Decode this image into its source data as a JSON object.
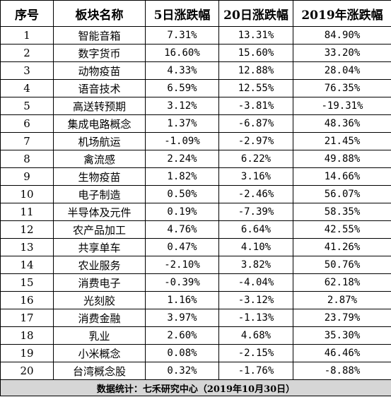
{
  "table": {
    "headers": [
      "序号",
      "板块名称",
      "5日涨跌幅",
      "20日涨跌幅",
      "2019年涨跌幅"
    ],
    "rows": [
      [
        "1",
        "智能音箱",
        "7.31%",
        "13.31%",
        "84.90%"
      ],
      [
        "2",
        "数字货币",
        "16.60%",
        "15.60%",
        "33.20%"
      ],
      [
        "3",
        "动物疫苗",
        "4.33%",
        "12.88%",
        "28.04%"
      ],
      [
        "4",
        "语音技术",
        "6.59%",
        "12.55%",
        "76.35%"
      ],
      [
        "5",
        "高送转预期",
        "3.12%",
        "-3.81%",
        "-19.31%"
      ],
      [
        "6",
        "集成电路概念",
        "1.37%",
        "-6.87%",
        "48.36%"
      ],
      [
        "7",
        "机场航运",
        "-1.09%",
        "-2.97%",
        "21.45%"
      ],
      [
        "8",
        "禽流感",
        "2.24%",
        "6.22%",
        "49.88%"
      ],
      [
        "9",
        "生物疫苗",
        "1.82%",
        "3.16%",
        "14.66%"
      ],
      [
        "10",
        "电子制造",
        "0.50%",
        "-2.46%",
        "56.07%"
      ],
      [
        "11",
        "半导体及元件",
        "0.19%",
        "-7.39%",
        "58.35%"
      ],
      [
        "12",
        "农产品加工",
        "4.76%",
        "6.64%",
        "42.55%"
      ],
      [
        "13",
        "共享单车",
        "0.47%",
        "4.10%",
        "41.26%"
      ],
      [
        "14",
        "农业服务",
        "-2.10%",
        "3.82%",
        "50.76%"
      ],
      [
        "15",
        "消费电子",
        "-0.39%",
        "-4.04%",
        "62.18%"
      ],
      [
        "16",
        "光刻胶",
        "1.16%",
        "-3.12%",
        "2.87%"
      ],
      [
        "17",
        "消费金融",
        "3.97%",
        "-1.13%",
        "23.79%"
      ],
      [
        "18",
        "乳业",
        "2.60%",
        "4.68%",
        "35.30%"
      ],
      [
        "19",
        "小米概念",
        "0.08%",
        "-2.15%",
        "46.46%"
      ],
      [
        "20",
        "台湾概念股",
        "0.32%",
        "-1.76%",
        "-8.88%"
      ]
    ],
    "footer": "数据统计：七禾研究中心（2019年10月30日）"
  },
  "colors": {
    "border": "#000000",
    "footer_bg": "#d6d6d6"
  }
}
